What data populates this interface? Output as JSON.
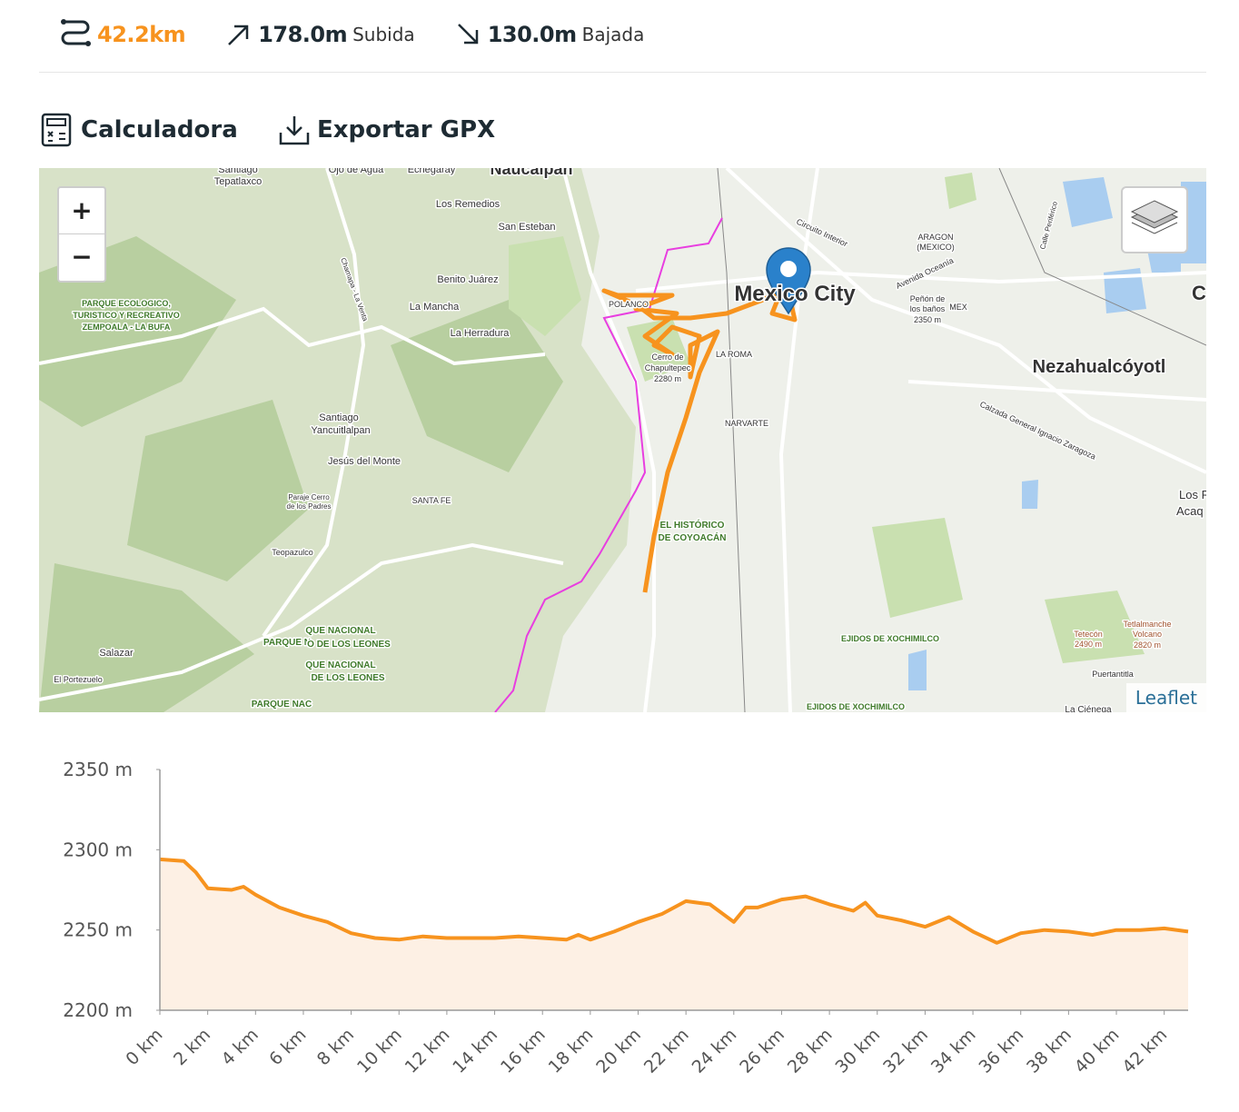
{
  "stats": {
    "distance": "42.2km",
    "ascent": "178.0m",
    "ascent_label": "Subida",
    "descent": "130.0m",
    "descent_label": "Bajada"
  },
  "actions": {
    "calculator": "Calculadora",
    "export": "Exportar GPX"
  },
  "map": {
    "zoom_in": "+",
    "zoom_out": "−",
    "attribution": "Leaflet",
    "labels": [
      "Mexico City",
      "Nezahualcóyotl",
      "Naucalpan",
      "Santiago",
      "Tepatlaxco",
      "Ojo de Agua",
      "Echegaray",
      "Los Remedios",
      "San Esteban",
      "Benito Juárez",
      "La Mancha",
      "La Herradura",
      "Santiago",
      "Yancuitlalpan",
      "Jesús del Monte",
      "SANTA FE",
      "Teopazulco",
      "Salazar",
      "El Portezuelo",
      "NARVARTE",
      "LA ROMA",
      "POLANCO",
      "Cerro de",
      "Chapultepec",
      "2280 m",
      "ARAGON",
      "(MEXICO)",
      "Avenida Oceanía",
      "Circuito Interior",
      "Peñón de",
      "los baños",
      "2350 m",
      "MEX",
      "Calzada General Ignacio Zaragoza",
      "Los R",
      "Acaq",
      "EJIDOS DE XOCHIMILCO",
      "EJIDOS DE XOCHIMILCO",
      "Tetecón",
      "2490 m",
      "Tetlalmanche",
      "Volcano",
      "2820 m",
      "Puertantitla",
      "La Ciénega",
      "EL HISTÓRICO",
      "DE COYOACÁN",
      "PARQUE ECOLOGICO,",
      "TURISTICO Y RECREATIVO",
      "ZEMPOALA - LA BUFA",
      "QUE NACIONAL",
      "PARQUE N",
      "O DE LOS LEONES",
      "QUE NACIONAL",
      "DE LOS LEONES",
      "PARQUE NAC",
      "Paraje Cerro",
      "de los Padres",
      "Calle Periférico",
      "Chamapa - La Venta",
      "Cl"
    ]
  },
  "chart_data": {
    "type": "area",
    "color": "#f7931e",
    "fill": "#fdf0e4",
    "x": [
      0,
      1,
      1.5,
      2,
      3,
      3.5,
      4,
      5,
      6,
      7,
      8,
      9,
      10,
      11,
      12,
      13,
      14,
      15,
      16,
      17,
      17.5,
      18,
      19,
      20,
      21,
      22,
      23,
      24,
      24.5,
      25,
      26,
      27,
      28,
      29,
      29.5,
      30,
      31,
      32,
      33,
      34,
      35,
      36,
      37,
      38,
      39,
      40,
      41,
      42,
      43
    ],
    "values": [
      2294,
      2293,
      2286,
      2276,
      2275,
      2277,
      2272,
      2264,
      2259,
      2255,
      2248,
      2245,
      2244,
      2246,
      2245,
      2245,
      2245,
      2246,
      2245,
      2244,
      2247,
      2244,
      2249,
      2255,
      2260,
      2268,
      2266,
      2255,
      2264,
      2264,
      2269,
      2271,
      2266,
      2262,
      2267,
      2259,
      2256,
      2252,
      2258,
      2249,
      2242,
      2248,
      2250,
      2249,
      2247,
      2250,
      2250,
      2251,
      2249
    ],
    "xlim": [
      0,
      43
    ],
    "ylim": [
      2200,
      2350
    ],
    "xticks": [
      {
        "value": 0,
        "label": "0 km"
      },
      {
        "value": 2,
        "label": "2 km"
      },
      {
        "value": 4,
        "label": "4 km"
      },
      {
        "value": 6,
        "label": "6 km"
      },
      {
        "value": 8,
        "label": "8 km"
      },
      {
        "value": 10,
        "label": "10 km"
      },
      {
        "value": 12,
        "label": "12 km"
      },
      {
        "value": 14,
        "label": "14 km"
      },
      {
        "value": 16,
        "label": "16 km"
      },
      {
        "value": 18,
        "label": "18 km"
      },
      {
        "value": 20,
        "label": "20 km"
      },
      {
        "value": 22,
        "label": "22 km"
      },
      {
        "value": 24,
        "label": "24 km"
      },
      {
        "value": 26,
        "label": "26 km"
      },
      {
        "value": 28,
        "label": "28 km"
      },
      {
        "value": 30,
        "label": "30 km"
      },
      {
        "value": 32,
        "label": "32 km"
      },
      {
        "value": 34,
        "label": "34 km"
      },
      {
        "value": 36,
        "label": "36 km"
      },
      {
        "value": 38,
        "label": "38 km"
      },
      {
        "value": 40,
        "label": "40 km"
      },
      {
        "value": 42,
        "label": "42 km"
      }
    ],
    "yticks": [
      {
        "value": 2200,
        "label": "2200 m"
      },
      {
        "value": 2250,
        "label": "2250 m"
      },
      {
        "value": 2300,
        "label": "2300 m"
      },
      {
        "value": 2350,
        "label": "2350 m"
      }
    ]
  }
}
